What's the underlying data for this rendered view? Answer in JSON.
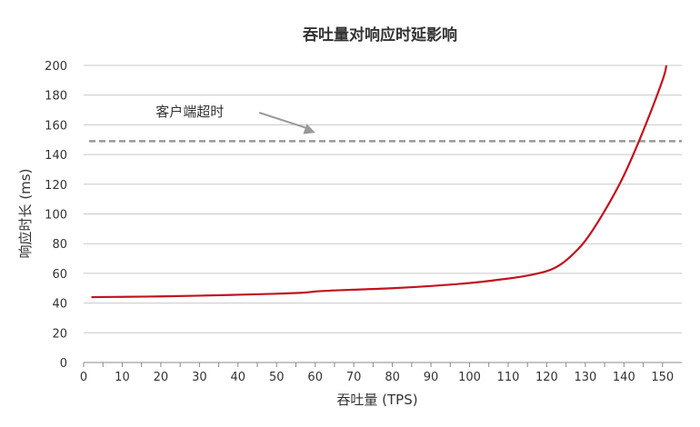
{
  "chart_data": {
    "type": "line",
    "title": "吞吐量对响应时延影响",
    "xlabel": "吞吐量 (TPS)",
    "ylabel": "响应时长 (ms)",
    "xlim": [
      0,
      155
    ],
    "ylim": [
      0,
      200
    ],
    "xticks": [
      0,
      10,
      20,
      30,
      40,
      50,
      60,
      70,
      80,
      90,
      100,
      110,
      120,
      130,
      140,
      150
    ],
    "yticks": [
      0,
      20,
      40,
      60,
      80,
      100,
      120,
      140,
      160,
      180,
      200
    ],
    "grid": "horizontal",
    "series": [
      {
        "color": "#c0141e",
        "x": [
          2,
          10,
          20,
          30,
          40,
          50,
          57,
          60,
          65,
          70,
          80,
          90,
          100,
          110,
          115,
          120,
          123,
          126,
          130,
          135,
          140,
          145,
          150,
          151
        ],
        "y": [
          44,
          44.2,
          44.5,
          45,
          45.6,
          46.3,
          47,
          47.8,
          48.5,
          49,
          50,
          51.5,
          53.5,
          56.5,
          58.5,
          61.5,
          65,
          71,
          82,
          102,
          126,
          156,
          190,
          200
        ]
      }
    ],
    "threshold": {
      "y": 149,
      "label": "客户端超时",
      "color": "#999999",
      "style": "dashed"
    }
  }
}
